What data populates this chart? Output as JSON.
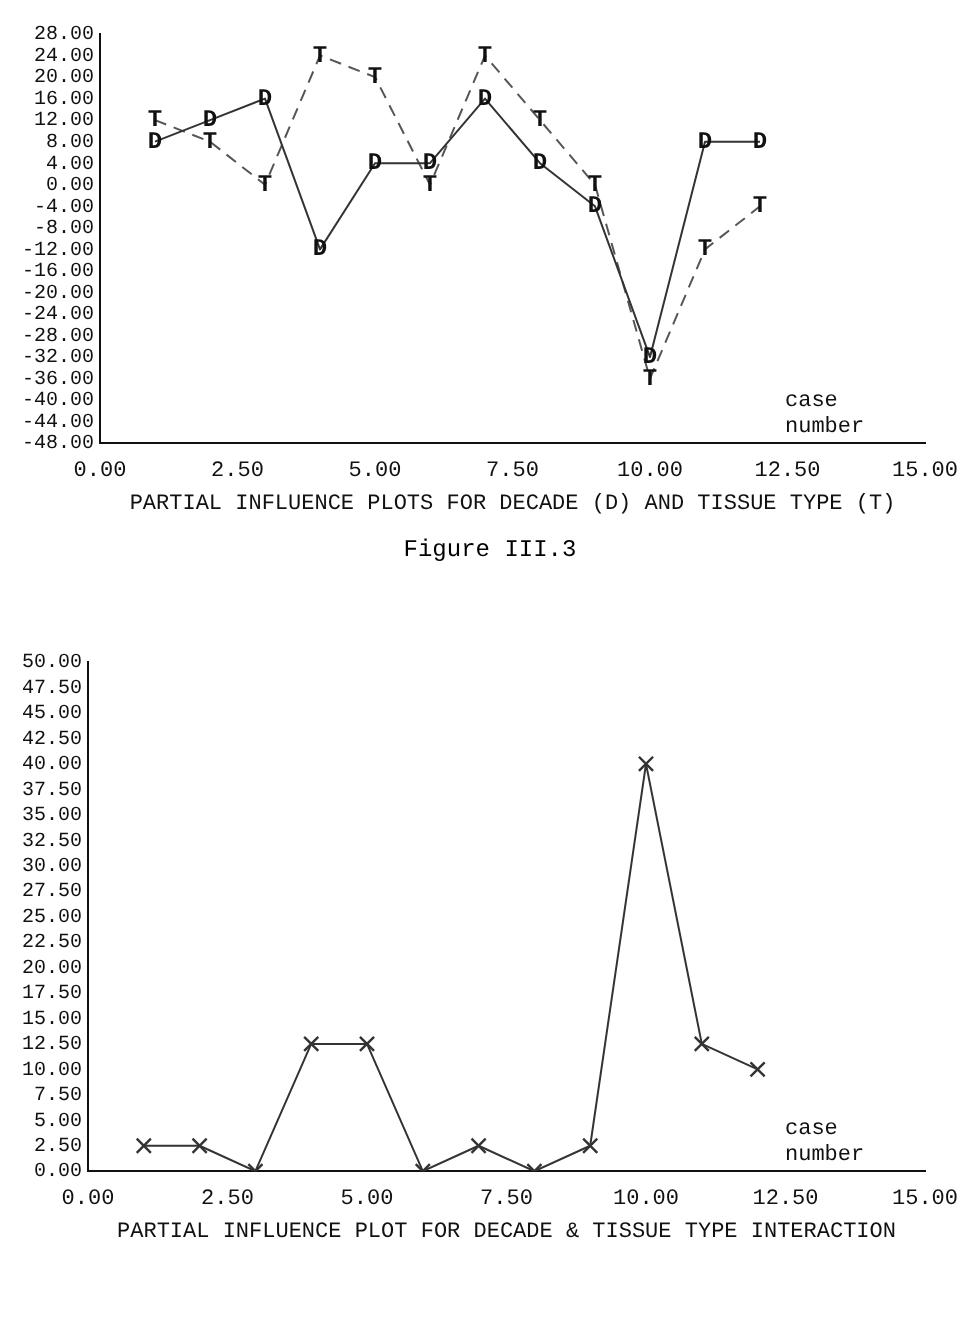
{
  "chart_data": [
    {
      "type": "line",
      "xlabel": "PARTIAL INFLUENCE PLOTS FOR DECADE (D) AND TISSUE TYPE (T)",
      "annotations": [
        "case number",
        "Figure III.3"
      ],
      "x": [
        1,
        2,
        3,
        4,
        5,
        6,
        7,
        8,
        9,
        10,
        11,
        12
      ],
      "series": [
        {
          "name": "D",
          "color": "#333333",
          "line_style": "solid",
          "values": [
            8,
            12,
            16,
            -12,
            4,
            4,
            16,
            4,
            -4,
            -32,
            8,
            8
          ]
        },
        {
          "name": "T",
          "color": "#555555",
          "line_style": "dashed",
          "values": [
            12,
            8,
            0,
            24,
            20,
            0,
            24,
            12,
            0,
            -36,
            -12,
            -4
          ]
        }
      ],
      "xlim": [
        0,
        15
      ],
      "xticks": [
        {
          "value": 0,
          "label": "0.00"
        },
        {
          "value": 2.5,
          "label": "2.50"
        },
        {
          "value": 5,
          "label": "5.00"
        },
        {
          "value": 7.5,
          "label": "7.50"
        },
        {
          "value": 10,
          "label": "10.00"
        },
        {
          "value": 12.5,
          "label": "12.50"
        },
        {
          "value": 15,
          "label": "15.00"
        }
      ],
      "ylim": [
        -48,
        28
      ],
      "yticks": [
        {
          "value": -48,
          "label": "-48.00"
        },
        {
          "value": -44,
          "label": "-44.00"
        },
        {
          "value": -40,
          "label": "-40.00"
        },
        {
          "value": -36,
          "label": "-36.00"
        },
        {
          "value": -32,
          "label": "-32.00"
        },
        {
          "value": -28,
          "label": "-28.00"
        },
        {
          "value": -24,
          "label": "-24.00"
        },
        {
          "value": -20,
          "label": "-20.00"
        },
        {
          "value": -16,
          "label": "-16.00"
        },
        {
          "value": -12,
          "label": "-12.00"
        },
        {
          "value": -8,
          "label": "-8.00"
        },
        {
          "value": -4,
          "label": "-4.00"
        },
        {
          "value": 0,
          "label": "0.00"
        },
        {
          "value": 4,
          "label": "4.00"
        },
        {
          "value": 8,
          "label": "8.00"
        },
        {
          "value": 12,
          "label": "12.00"
        },
        {
          "value": 16,
          "label": "16.00"
        },
        {
          "value": 20,
          "label": "20.00"
        },
        {
          "value": 24,
          "label": "24.00"
        },
        {
          "value": 28,
          "label": "28.00"
        }
      ],
      "marker": "none",
      "grid": false,
      "legend": false
    },
    {
      "type": "line",
      "xlabel": "PARTIAL INFLUENCE PLOT FOR DECADE & TISSUE TYPE INTERACTION",
      "annotations": [
        "case number"
      ],
      "x": [
        1,
        2,
        3,
        4,
        5,
        6,
        7,
        8,
        9,
        10,
        11,
        12
      ],
      "series": [
        {
          "color": "#333333",
          "line_style": "solid",
          "values": [
            2.5,
            2.5,
            0,
            12.5,
            12.5,
            0,
            2.5,
            0,
            2.5,
            40,
            12.5,
            10
          ]
        }
      ],
      "marker": "cross",
      "xlim": [
        0,
        15
      ],
      "xticks": [
        {
          "value": 0,
          "label": "0.00"
        },
        {
          "value": 2.5,
          "label": "2.50"
        },
        {
          "value": 5,
          "label": "5.00"
        },
        {
          "value": 7.5,
          "label": "7.50"
        },
        {
          "value": 10,
          "label": "10.00"
        },
        {
          "value": 12.5,
          "label": "12.50"
        },
        {
          "value": 15,
          "label": "15.00"
        }
      ],
      "ylim": [
        0,
        50
      ],
      "yticks": [
        {
          "value": 0,
          "label": "0.00"
        },
        {
          "value": 2.5,
          "label": "2.50"
        },
        {
          "value": 5,
          "label": "5.00"
        },
        {
          "value": 7.5,
          "label": "7.50"
        },
        {
          "value": 10,
          "label": "10.00"
        },
        {
          "value": 12.5,
          "label": "12.50"
        },
        {
          "value": 15,
          "label": "15.00"
        },
        {
          "value": 17.5,
          "label": "17.50"
        },
        {
          "value": 20,
          "label": "20.00"
        },
        {
          "value": 22.5,
          "label": "22.50"
        },
        {
          "value": 25,
          "label": "25.00"
        },
        {
          "value": 27.5,
          "label": "27.50"
        },
        {
          "value": 30,
          "label": "30.00"
        },
        {
          "value": 32.5,
          "label": "32.50"
        },
        {
          "value": 35,
          "label": "35.00"
        },
        {
          "value": 37.5,
          "label": "37.50"
        },
        {
          "value": 40,
          "label": "40.00"
        },
        {
          "value": 42.5,
          "label": "42.50"
        },
        {
          "value": 45,
          "label": "45.00"
        },
        {
          "value": 47.5,
          "label": "47.50"
        },
        {
          "value": 50,
          "label": "50.00"
        }
      ],
      "grid": false,
      "legend": false
    }
  ]
}
